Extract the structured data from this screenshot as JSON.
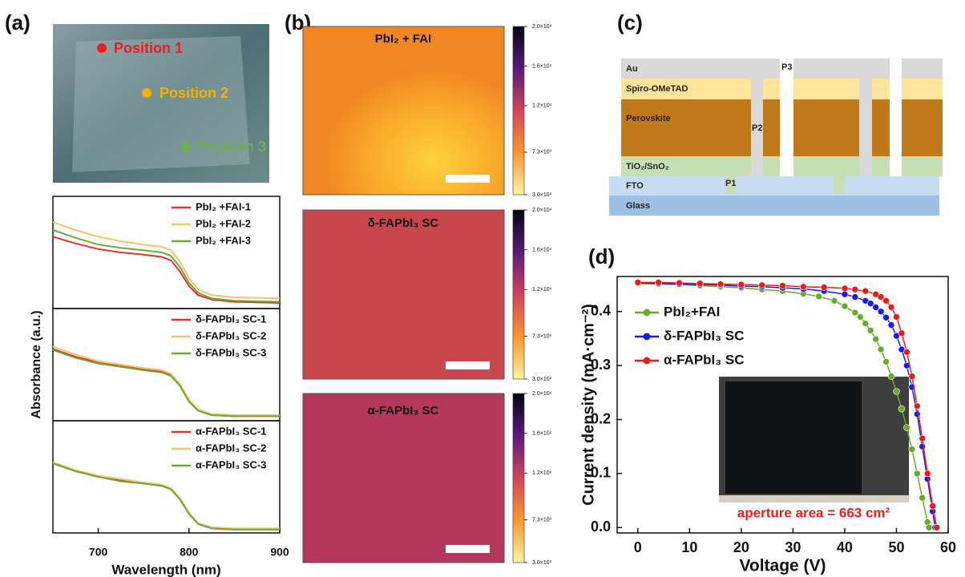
{
  "panel_labels": [
    "(a)",
    "(b)",
    "(c)",
    "(d)"
  ],
  "photo": {
    "positions": [
      "Position 1",
      "Position 2",
      "Position 3"
    ]
  },
  "maps": [
    {
      "title": "PbI₂ + FAI"
    },
    {
      "title": "δ-FAPbI₃ SC"
    },
    {
      "title": "α-FAPbI₃ SC"
    }
  ],
  "colorbar": {
    "lim": [
      3000,
      20000
    ],
    "ticks": [
      {
        "value": 20000,
        "label": "2.0×10⁴"
      },
      {
        "value": 16000,
        "label": "1.6×10⁴"
      },
      {
        "value": 12000,
        "label": "1.2×10⁴"
      },
      {
        "value": 7300,
        "label": "7.3×10³"
      },
      {
        "value": 3000,
        "label": "3.0×10³"
      }
    ]
  },
  "device": {
    "layers": [
      "Au",
      "Spiro-OMeTAD",
      "Perovskite",
      "TiO₂/SnO₂",
      "FTO",
      "Glass"
    ],
    "scribes": [
      "P1",
      "P2",
      "P3"
    ]
  },
  "chart_data": [
    {
      "type": "line",
      "ylabel": "Absorbance (a.u.)",
      "legend": "upper right",
      "xlim": [
        650,
        900
      ],
      "ylim": [
        0,
        1
      ],
      "x": [
        650,
        675,
        700,
        725,
        750,
        770,
        780,
        790,
        800,
        810,
        825,
        850,
        900
      ],
      "series": [
        {
          "name": "PbI₂ +FAI-1",
          "color": "#e8302a",
          "values": [
            0.64,
            0.58,
            0.53,
            0.5,
            0.48,
            0.46,
            0.43,
            0.33,
            0.2,
            0.12,
            0.08,
            0.06,
            0.05
          ]
        },
        {
          "name": "PbI₂ +FAI-2",
          "color": "#f5c36b",
          "values": [
            0.77,
            0.7,
            0.64,
            0.6,
            0.57,
            0.55,
            0.52,
            0.42,
            0.27,
            0.17,
            0.12,
            0.1,
            0.09
          ]
        },
        {
          "name": "PbI₂ +FAI-3",
          "color": "#6aaa3a",
          "values": [
            0.7,
            0.63,
            0.57,
            0.54,
            0.52,
            0.5,
            0.47,
            0.37,
            0.23,
            0.14,
            0.09,
            0.07,
            0.06
          ]
        }
      ]
    },
    {
      "type": "line",
      "legend": "upper right",
      "xlim": [
        650,
        900
      ],
      "ylim": [
        0,
        1
      ],
      "x": [
        650,
        675,
        700,
        725,
        750,
        770,
        780,
        790,
        800,
        810,
        825,
        850,
        900
      ],
      "series": [
        {
          "name": "δ-FAPbI₃ SC-1",
          "color": "#e8302a",
          "values": [
            0.64,
            0.57,
            0.52,
            0.49,
            0.46,
            0.44,
            0.41,
            0.32,
            0.18,
            0.09,
            0.05,
            0.04,
            0.04
          ]
        },
        {
          "name": "δ-FAPbI₃ SC-2",
          "color": "#f5c36b",
          "values": [
            0.66,
            0.59,
            0.53,
            0.5,
            0.47,
            0.45,
            0.42,
            0.33,
            0.19,
            0.1,
            0.06,
            0.05,
            0.05
          ]
        },
        {
          "name": "δ-FAPbI₃ SC-3",
          "color": "#6aaa3a",
          "values": [
            0.63,
            0.56,
            0.51,
            0.48,
            0.45,
            0.43,
            0.4,
            0.31,
            0.17,
            0.09,
            0.05,
            0.04,
            0.04
          ]
        }
      ]
    },
    {
      "type": "line",
      "xlabel": "Wavelength (nm)",
      "legend": "upper right",
      "xlim": [
        650,
        900
      ],
      "ylim": [
        0,
        1
      ],
      "xticks": [
        700,
        800,
        900
      ],
      "x": [
        650,
        675,
        700,
        725,
        750,
        770,
        780,
        790,
        800,
        810,
        825,
        850,
        900
      ],
      "series": [
        {
          "name": "α-FAPbI₃ SC-1",
          "color": "#e8302a",
          "values": [
            0.62,
            0.55,
            0.5,
            0.47,
            0.44,
            0.42,
            0.39,
            0.3,
            0.17,
            0.08,
            0.04,
            0.03,
            0.03
          ]
        },
        {
          "name": "α-FAPbI₃ SC-2",
          "color": "#f5c36b",
          "values": [
            0.63,
            0.56,
            0.51,
            0.48,
            0.45,
            0.43,
            0.4,
            0.31,
            0.18,
            0.09,
            0.05,
            0.04,
            0.04
          ]
        },
        {
          "name": "α-FAPbI₃ SC-3",
          "color": "#6aaa3a",
          "values": [
            0.62,
            0.55,
            0.5,
            0.46,
            0.44,
            0.42,
            0.39,
            0.3,
            0.17,
            0.08,
            0.04,
            0.03,
            0.03
          ]
        }
      ]
    },
    {
      "type": "line",
      "markers": true,
      "xlabel": "Voltage (V)",
      "ylabel": "Current density (mA·cm⁻²)",
      "legend": "upper left",
      "annotation": "aperture area = 663 cm²",
      "xlim": [
        -4,
        60
      ],
      "ylim": [
        -0.01,
        0.465
      ],
      "xticks": [
        0,
        10,
        20,
        30,
        40,
        50,
        60
      ],
      "yticks": [
        {
          "value": 0,
          "label": "0.0"
        },
        0.1,
        0.2,
        0.3,
        0.4
      ],
      "series": [
        {
          "name": "PbI₂+FAI",
          "color": "#6aaa2a",
          "x": [
            0,
            4,
            8,
            12,
            16,
            20,
            24,
            28,
            32,
            35,
            38,
            40,
            42,
            43,
            44,
            45,
            46,
            47,
            48,
            49,
            50,
            51,
            52,
            53,
            54,
            55,
            56,
            56.3
          ],
          "values": [
            0.452,
            0.451,
            0.45,
            0.448,
            0.446,
            0.444,
            0.441,
            0.438,
            0.433,
            0.428,
            0.42,
            0.41,
            0.398,
            0.39,
            0.378,
            0.365,
            0.349,
            0.33,
            0.307,
            0.28,
            0.252,
            0.22,
            0.185,
            0.145,
            0.1,
            0.055,
            0.01,
            0.0
          ]
        },
        {
          "name": "δ-FAPbI₃ SC",
          "color": "#1a1aee",
          "x": [
            0,
            4,
            8,
            12,
            16,
            20,
            24,
            28,
            32,
            36,
            40,
            42,
            44,
            45,
            46,
            47,
            48,
            49,
            50,
            51,
            52,
            53,
            54,
            55,
            56,
            57,
            57.5
          ],
          "values": [
            0.453,
            0.452,
            0.451,
            0.45,
            0.449,
            0.447,
            0.446,
            0.444,
            0.442,
            0.438,
            0.432,
            0.427,
            0.42,
            0.415,
            0.408,
            0.4,
            0.389,
            0.375,
            0.355,
            0.33,
            0.3,
            0.26,
            0.21,
            0.15,
            0.09,
            0.03,
            0.0
          ]
        },
        {
          "name": "α-FAPbI₃ SC",
          "color": "#ee1a1a",
          "x": [
            0,
            4,
            8,
            12,
            16,
            20,
            24,
            28,
            32,
            36,
            40,
            42,
            44,
            46,
            47,
            48,
            49,
            50,
            51,
            52,
            53,
            54,
            55,
            56,
            57,
            57.8
          ],
          "values": [
            0.454,
            0.454,
            0.453,
            0.452,
            0.451,
            0.45,
            0.449,
            0.448,
            0.446,
            0.445,
            0.443,
            0.441,
            0.438,
            0.432,
            0.427,
            0.42,
            0.408,
            0.39,
            0.36,
            0.325,
            0.28,
            0.225,
            0.165,
            0.1,
            0.04,
            0.0
          ]
        }
      ]
    }
  ]
}
